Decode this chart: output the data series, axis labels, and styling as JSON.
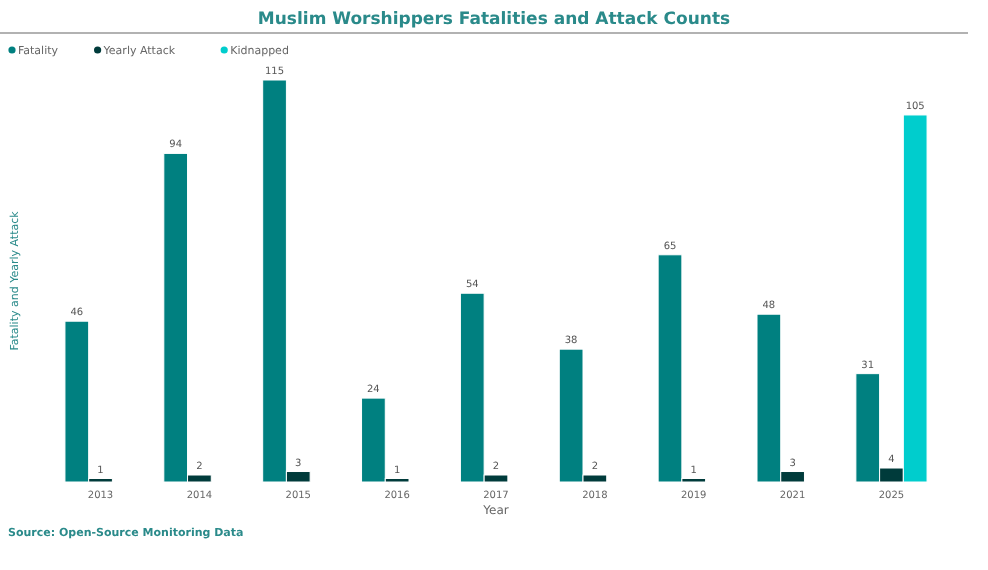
{
  "chart_data": {
    "type": "bar",
    "title": "Muslim Worshippers Fatalities and Attack Counts",
    "xlabel": "Year",
    "ylabel": "Fatality and Yearly Attack",
    "annotations": [
      "Source: Open-Source Monitoring Data"
    ],
    "categories": [
      "2013",
      "2014",
      "2015",
      "2016",
      "2017",
      "2018",
      "2019",
      "2021",
      "2025"
    ],
    "series": [
      {
        "name": "Fatality",
        "color": "#008080",
        "values": [
          46,
          94,
          115,
          24,
          54,
          38,
          65,
          48,
          31
        ]
      },
      {
        "name": "Yearly Attack",
        "color": "#003b3b",
        "values": [
          1,
          2,
          3,
          1,
          2,
          2,
          1,
          3,
          4
        ]
      },
      {
        "name": "Kidnapped",
        "color": "#00cdcd",
        "values": [
          null,
          null,
          null,
          null,
          null,
          null,
          null,
          null,
          105
        ]
      }
    ],
    "data_labels": true,
    "legend": "top left",
    "grid": false
  }
}
